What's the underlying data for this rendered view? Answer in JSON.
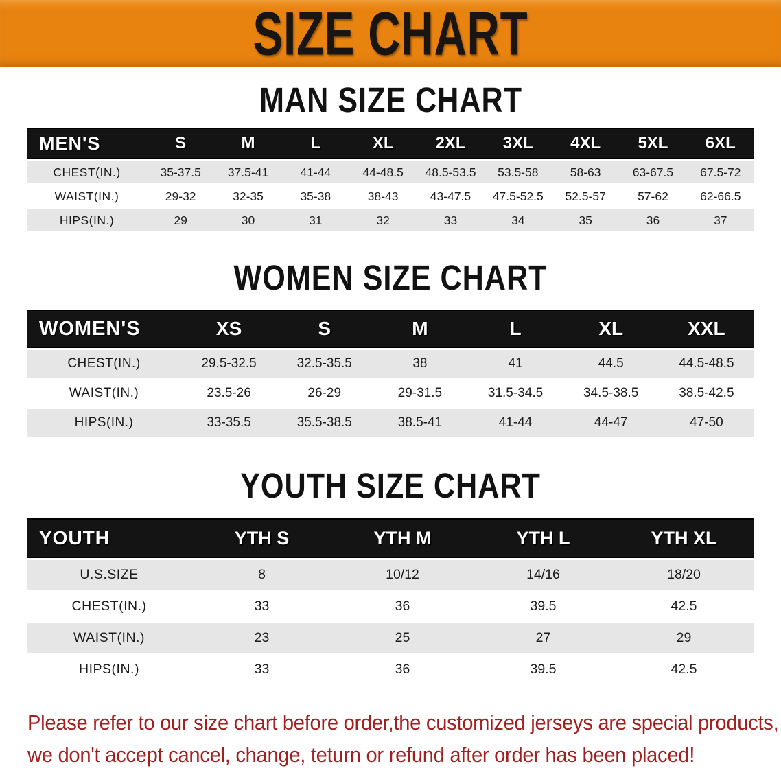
{
  "banner": {
    "title": "SIZE CHART",
    "bg_color": "#E8830F",
    "text_color": "#181512"
  },
  "sections": [
    {
      "title": "MAN SIZE CHART",
      "table": {
        "header_label": "MEN'S",
        "columns": [
          "S",
          "M",
          "L",
          "XL",
          "2XL",
          "3XL",
          "4XL",
          "5XL",
          "6XL"
        ],
        "rows": [
          {
            "label": "CHEST(IN.)",
            "values": [
              "35-37.5",
              "37.5-41",
              "41-44",
              "44-48.5",
              "48.5-53.5",
              "53.5-58",
              "58-63",
              "63-67.5",
              "67.5-72"
            ]
          },
          {
            "label": "WAIST(IN.)",
            "values": [
              "29-32",
              "32-35",
              "35-38",
              "38-43",
              "43-47.5",
              "47.5-52.5",
              "52.5-57",
              "57-62",
              "62-66.5"
            ]
          },
          {
            "label": "HIPS(IN.)",
            "values": [
              "29",
              "30",
              "31",
              "32",
              "33",
              "34",
              "35",
              "36",
              "37"
            ]
          }
        ]
      }
    },
    {
      "title": "WOMEN SIZE CHART",
      "table": {
        "header_label": "WOMEN'S",
        "columns": [
          "XS",
          "S",
          "M",
          "L",
          "XL",
          "XXL"
        ],
        "rows": [
          {
            "label": "CHEST(IN.)",
            "values": [
              "29.5-32.5",
              "32.5-35.5",
              "38",
              "41",
              "44.5",
              "44.5-48.5"
            ]
          },
          {
            "label": "WAIST(IN.)",
            "values": [
              "23.5-26",
              "26-29",
              "29-31.5",
              "31.5-34.5",
              "34.5-38.5",
              "38.5-42.5"
            ]
          },
          {
            "label": "HIPS(IN.)",
            "values": [
              "33-35.5",
              "35.5-38.5",
              "38.5-41",
              "41-44",
              "44-47",
              "47-50"
            ]
          }
        ]
      }
    },
    {
      "title": "YOUTH SIZE CHART",
      "table": {
        "header_label": "YOUTH",
        "columns": [
          "YTH S",
          "YTH M",
          "YTH L",
          "YTH XL"
        ],
        "rows": [
          {
            "label": "U.S.SIZE",
            "values": [
              "8",
              "10/12",
              "14/16",
              "18/20"
            ]
          },
          {
            "label": "CHEST(IN.)",
            "values": [
              "33",
              "36",
              "39.5",
              "42.5"
            ]
          },
          {
            "label": "WAIST(IN.)",
            "values": [
              "23",
              "25",
              "27",
              "29"
            ]
          },
          {
            "label": "HIPS(IN.)",
            "values": [
              "33",
              "36",
              "39.5",
              "42.5"
            ]
          }
        ]
      }
    }
  ],
  "disclaimer": {
    "line1": "Please refer to our size chart before order,the customized jerseys are special products,",
    "line2": "we don't accept cancel, change, teturn or refund after order has been placed!",
    "color": "#A32020"
  }
}
